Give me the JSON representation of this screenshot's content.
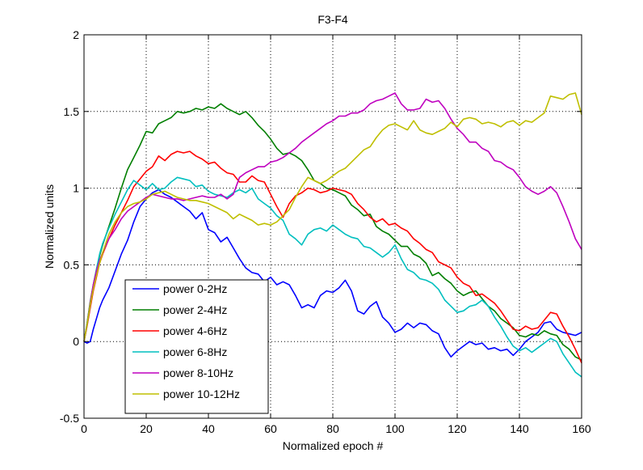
{
  "chart_data": {
    "type": "line",
    "title": "F3-F4",
    "xlabel": "Normalized epoch #",
    "ylabel": "Normalized units",
    "xlim": [
      0,
      160
    ],
    "ylim": [
      -0.5,
      2
    ],
    "x_ticks": [
      0,
      20,
      40,
      60,
      80,
      100,
      120,
      140,
      160
    ],
    "x_tick_labels": [
      "0",
      "20",
      "40",
      "60",
      "80",
      "100",
      "120",
      "140",
      "160"
    ],
    "y_ticks": [
      -0.5,
      0,
      0.5,
      1,
      1.5,
      2
    ],
    "y_tick_labels": [
      "-0.5",
      "0",
      "0.5",
      "1",
      "1.5",
      "2"
    ],
    "grid": true,
    "legend_position": "bottom-left",
    "x": [
      0,
      1,
      2,
      3,
      4,
      5,
      6,
      8,
      10,
      12,
      14,
      16,
      18,
      20,
      22,
      24,
      26,
      28,
      30,
      32,
      34,
      36,
      38,
      40,
      42,
      44,
      46,
      48,
      50,
      52,
      54,
      56,
      58,
      60,
      62,
      64,
      66,
      68,
      70,
      72,
      74,
      76,
      78,
      80,
      82,
      84,
      86,
      88,
      90,
      92,
      94,
      96,
      98,
      100,
      102,
      104,
      106,
      108,
      110,
      112,
      114,
      116,
      118,
      120,
      122,
      124,
      126,
      128,
      130,
      132,
      134,
      136,
      138,
      140,
      142,
      144,
      146,
      148,
      150,
      152,
      154,
      156,
      158,
      160
    ],
    "series": [
      {
        "name": "power 0-2Hz",
        "color": "#0000ff",
        "values": [
          0.0,
          -0.01,
          0.0,
          0.08,
          0.15,
          0.22,
          0.27,
          0.35,
          0.46,
          0.57,
          0.66,
          0.78,
          0.88,
          0.93,
          0.97,
          0.99,
          0.96,
          0.94,
          0.91,
          0.88,
          0.85,
          0.8,
          0.84,
          0.73,
          0.71,
          0.65,
          0.68,
          0.61,
          0.54,
          0.48,
          0.45,
          0.44,
          0.39,
          0.42,
          0.37,
          0.39,
          0.37,
          0.3,
          0.22,
          0.24,
          0.22,
          0.3,
          0.33,
          0.32,
          0.35,
          0.4,
          0.33,
          0.2,
          0.18,
          0.23,
          0.26,
          0.16,
          0.12,
          0.06,
          0.08,
          0.12,
          0.09,
          0.12,
          0.11,
          0.07,
          0.05,
          -0.04,
          -0.1,
          -0.06,
          -0.03,
          0.0,
          -0.02,
          -0.01,
          -0.05,
          -0.04,
          -0.06,
          -0.05,
          -0.09,
          -0.05,
          0.0,
          0.03,
          0.06,
          0.12,
          0.13,
          0.08,
          0.06,
          0.05,
          0.04,
          0.06
        ]
      },
      {
        "name": "power 2-4Hz",
        "color": "#007f00",
        "values": [
          0.0,
          0.12,
          0.26,
          0.37,
          0.47,
          0.56,
          0.63,
          0.75,
          0.87,
          1.0,
          1.12,
          1.2,
          1.28,
          1.37,
          1.36,
          1.42,
          1.44,
          1.46,
          1.5,
          1.49,
          1.5,
          1.52,
          1.51,
          1.53,
          1.52,
          1.55,
          1.52,
          1.5,
          1.48,
          1.5,
          1.46,
          1.41,
          1.37,
          1.32,
          1.26,
          1.22,
          1.23,
          1.21,
          1.18,
          1.12,
          1.05,
          1.03,
          1.0,
          0.99,
          0.97,
          0.95,
          0.89,
          0.86,
          0.82,
          0.83,
          0.75,
          0.72,
          0.7,
          0.66,
          0.62,
          0.62,
          0.57,
          0.55,
          0.51,
          0.43,
          0.45,
          0.41,
          0.38,
          0.33,
          0.3,
          0.32,
          0.33,
          0.28,
          0.23,
          0.2,
          0.15,
          0.12,
          0.09,
          0.04,
          0.03,
          0.05,
          0.04,
          0.07,
          0.05,
          0.04,
          -0.02,
          -0.05,
          -0.1,
          -0.12
        ]
      },
      {
        "name": "power 4-6Hz",
        "color": "#ff0000",
        "values": [
          0.0,
          0.1,
          0.22,
          0.33,
          0.42,
          0.51,
          0.57,
          0.67,
          0.76,
          0.84,
          0.92,
          1.01,
          1.06,
          1.11,
          1.14,
          1.21,
          1.18,
          1.22,
          1.24,
          1.23,
          1.24,
          1.21,
          1.19,
          1.16,
          1.17,
          1.13,
          1.1,
          1.09,
          1.04,
          1.04,
          1.08,
          1.05,
          1.04,
          0.96,
          0.88,
          0.81,
          0.9,
          0.95,
          0.97,
          1.0,
          0.99,
          0.97,
          0.98,
          1.0,
          0.99,
          0.98,
          0.96,
          0.9,
          0.86,
          0.81,
          0.78,
          0.8,
          0.76,
          0.77,
          0.74,
          0.72,
          0.67,
          0.64,
          0.6,
          0.58,
          0.52,
          0.5,
          0.48,
          0.42,
          0.38,
          0.36,
          0.3,
          0.31,
          0.28,
          0.25,
          0.2,
          0.14,
          0.08,
          0.07,
          0.1,
          0.08,
          0.09,
          0.14,
          0.19,
          0.18,
          0.1,
          0.03,
          -0.05,
          -0.14
        ]
      },
      {
        "name": "power 6-8Hz",
        "color": "#00bfbf",
        "values": [
          0.0,
          0.11,
          0.24,
          0.36,
          0.47,
          0.57,
          0.64,
          0.74,
          0.83,
          0.91,
          0.99,
          1.05,
          1.02,
          0.99,
          1.03,
          0.99,
          1.0,
          1.04,
          1.07,
          1.06,
          1.05,
          1.01,
          1.02,
          0.98,
          0.96,
          0.95,
          0.94,
          0.97,
          0.99,
          0.97,
          1.0,
          0.93,
          0.9,
          0.87,
          0.82,
          0.79,
          0.7,
          0.67,
          0.63,
          0.7,
          0.73,
          0.74,
          0.72,
          0.76,
          0.73,
          0.7,
          0.68,
          0.67,
          0.62,
          0.61,
          0.58,
          0.55,
          0.58,
          0.63,
          0.54,
          0.47,
          0.45,
          0.41,
          0.4,
          0.38,
          0.34,
          0.27,
          0.23,
          0.19,
          0.2,
          0.23,
          0.24,
          0.27,
          0.23,
          0.16,
          0.1,
          0.03,
          -0.03,
          -0.06,
          -0.04,
          -0.07,
          -0.04,
          -0.01,
          0.02,
          0.0,
          -0.08,
          -0.14,
          -0.2,
          -0.23
        ]
      },
      {
        "name": "power 8-10Hz",
        "color": "#bf00bf",
        "values": [
          0.0,
          0.11,
          0.25,
          0.37,
          0.46,
          0.53,
          0.58,
          0.67,
          0.73,
          0.8,
          0.85,
          0.88,
          0.91,
          0.94,
          0.96,
          0.95,
          0.94,
          0.93,
          0.93,
          0.92,
          0.93,
          0.94,
          0.95,
          0.94,
          0.94,
          0.96,
          0.93,
          0.96,
          1.07,
          1.1,
          1.12,
          1.14,
          1.14,
          1.17,
          1.18,
          1.2,
          1.23,
          1.26,
          1.3,
          1.33,
          1.36,
          1.39,
          1.42,
          1.44,
          1.47,
          1.47,
          1.49,
          1.49,
          1.51,
          1.55,
          1.57,
          1.58,
          1.6,
          1.62,
          1.55,
          1.51,
          1.51,
          1.52,
          1.58,
          1.56,
          1.57,
          1.52,
          1.45,
          1.39,
          1.35,
          1.3,
          1.3,
          1.26,
          1.24,
          1.18,
          1.17,
          1.14,
          1.12,
          1.07,
          1.01,
          0.98,
          0.96,
          0.98,
          1.01,
          0.97,
          0.88,
          0.78,
          0.67,
          0.6
        ]
      },
      {
        "name": "power 10-12Hz",
        "color": "#bfbf00",
        "values": [
          0.0,
          0.11,
          0.24,
          0.34,
          0.43,
          0.51,
          0.58,
          0.7,
          0.78,
          0.84,
          0.88,
          0.9,
          0.91,
          0.93,
          0.96,
          0.97,
          0.98,
          0.96,
          0.94,
          0.93,
          0.92,
          0.92,
          0.91,
          0.9,
          0.88,
          0.86,
          0.84,
          0.8,
          0.83,
          0.81,
          0.79,
          0.76,
          0.77,
          0.76,
          0.78,
          0.82,
          0.86,
          0.94,
          1.01,
          1.07,
          1.05,
          1.03,
          1.05,
          1.08,
          1.11,
          1.13,
          1.17,
          1.21,
          1.25,
          1.27,
          1.33,
          1.38,
          1.41,
          1.42,
          1.4,
          1.38,
          1.44,
          1.38,
          1.36,
          1.35,
          1.37,
          1.39,
          1.43,
          1.4,
          1.45,
          1.46,
          1.45,
          1.42,
          1.43,
          1.42,
          1.4,
          1.43,
          1.44,
          1.41,
          1.44,
          1.43,
          1.46,
          1.49,
          1.6,
          1.59,
          1.58,
          1.61,
          1.62,
          1.48
        ]
      }
    ]
  }
}
